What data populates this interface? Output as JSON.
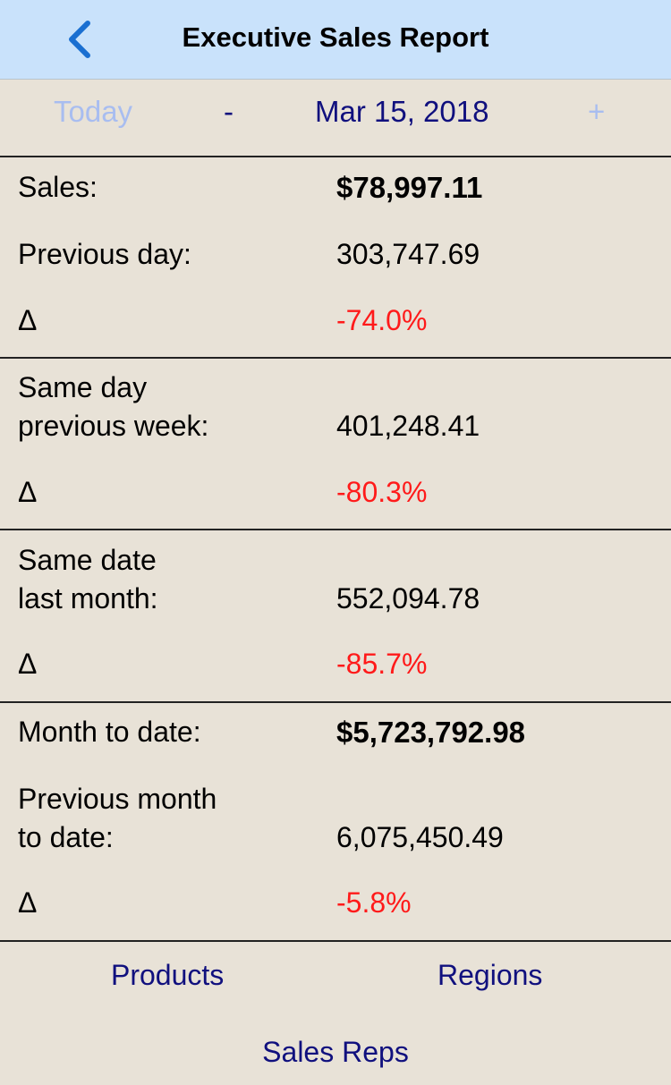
{
  "header": {
    "title": "Executive Sales Report",
    "back_icon": "chevron-left-icon"
  },
  "date_nav": {
    "today": "Today",
    "minus": "-",
    "date": "Mar 15, 2018",
    "plus": "+"
  },
  "sections": [
    {
      "rows": [
        {
          "label": "Sales:",
          "value": "$78,997.11"
        },
        {
          "label": "Previous day:",
          "value": "303,747.69"
        },
        {
          "label": "Δ",
          "value": "-74.0%"
        }
      ]
    },
    {
      "rows": [
        {
          "label1": "Same day",
          "label2": "previous week:",
          "value": "401,248.41"
        },
        {
          "label": "Δ",
          "value": "-80.3%"
        }
      ]
    },
    {
      "rows": [
        {
          "label1": "Same date",
          "label2": "last month:",
          "value": "552,094.78"
        },
        {
          "label": "Δ",
          "value": "-85.7%"
        }
      ]
    },
    {
      "rows": [
        {
          "label": "Month to date:",
          "value": "$5,723,792.98"
        },
        {
          "label1": "Previous month",
          "label2": "to date:",
          "value": "6,075,450.49"
        },
        {
          "label": "Δ",
          "value": "-5.8%"
        }
      ]
    }
  ],
  "footer": {
    "products": "Products",
    "regions": "Regions",
    "sales_reps": "Sales Reps"
  },
  "colors": {
    "header_bg": "#c9e2fb",
    "background": "#e8e2d7",
    "link": "#10107e",
    "negative": "#ff1a1a",
    "disabled": "#a8bdf0"
  }
}
